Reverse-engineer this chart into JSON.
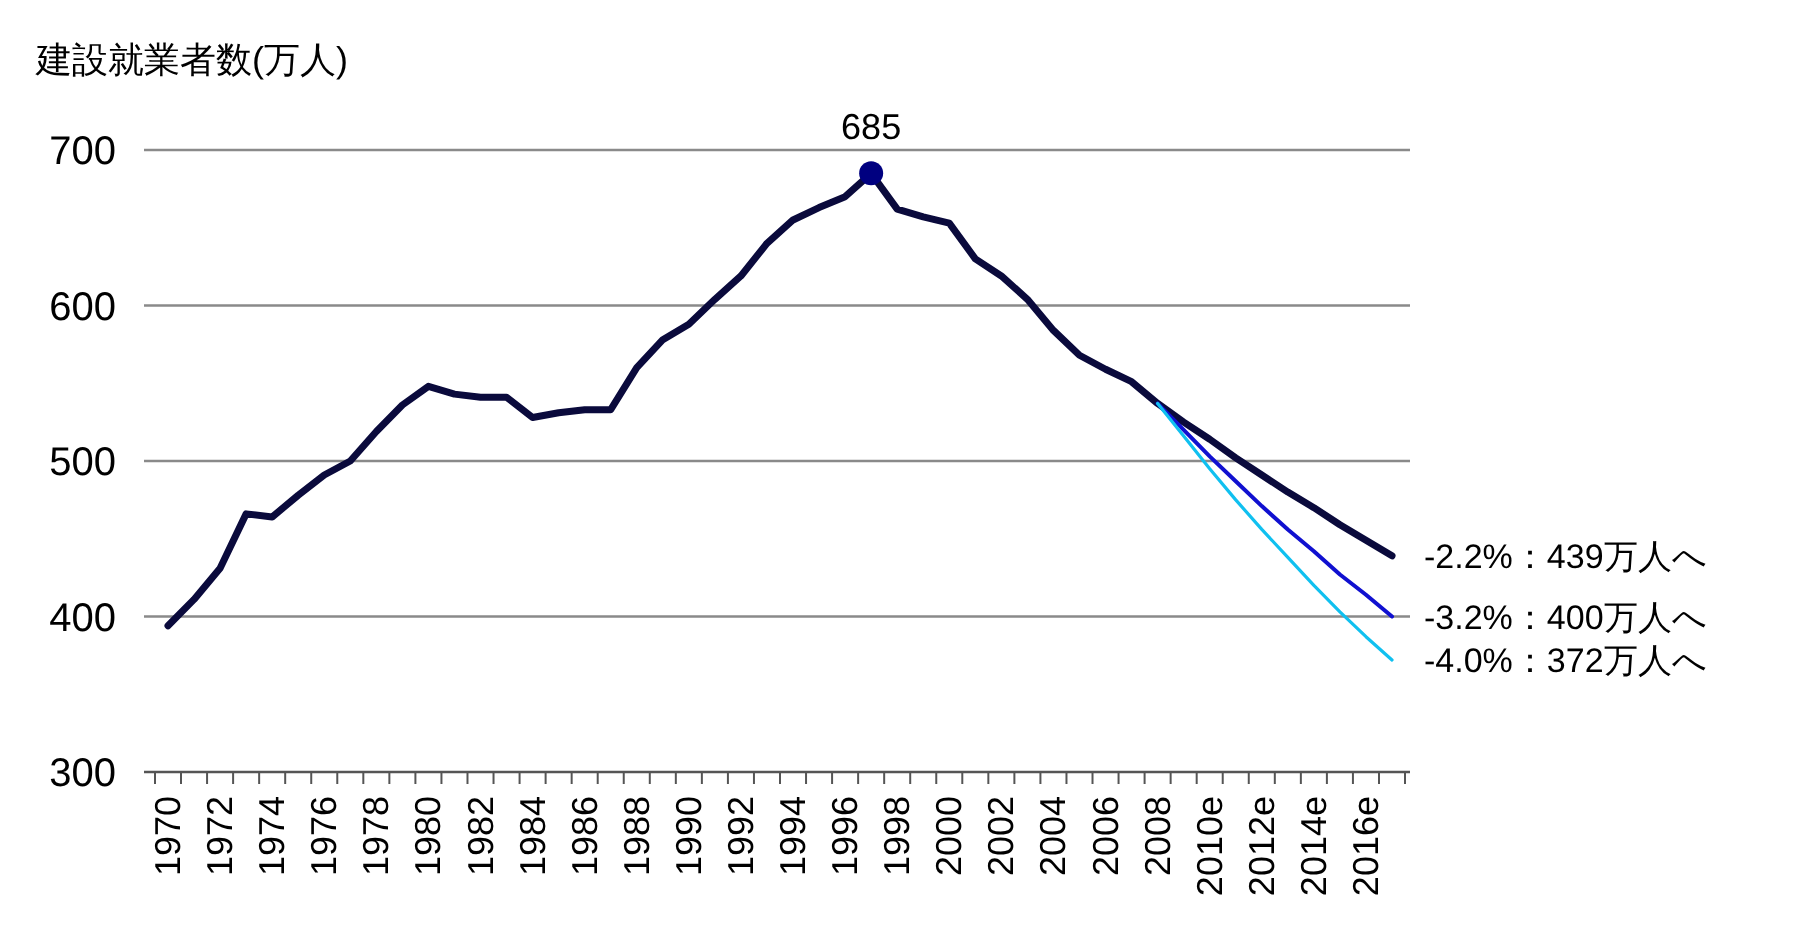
{
  "chart_data": {
    "type": "line",
    "ylabel": "建設就業者数(万人)",
    "categories": [
      "1970",
      null,
      "1972",
      null,
      "1974",
      null,
      "1976",
      null,
      "1978",
      null,
      "1980",
      null,
      "1982",
      null,
      "1984",
      null,
      "1986",
      null,
      "1988",
      null,
      "1990",
      null,
      "1992",
      null,
      "1994",
      null,
      "1996",
      null,
      "1998",
      null,
      "2000",
      null,
      "2002",
      null,
      "2004",
      null,
      "2006",
      null,
      "2008",
      null,
      "2010e",
      null,
      "2012e",
      null,
      "2014e",
      null,
      "2016e",
      null
    ],
    "series": [
      {
        "name": "-2.2%：439万人へ",
        "color": "#0a0a3c",
        "values": [
          394,
          411,
          431,
          466,
          464,
          478,
          491,
          500,
          519,
          536,
          548,
          543,
          541,
          541,
          528,
          531,
          533,
          533,
          560,
          578,
          588,
          604,
          619,
          640,
          655,
          663,
          670,
          685,
          662,
          657,
          653,
          630,
          619,
          604,
          584,
          568,
          559,
          551,
          537,
          525,
          514,
          502,
          491,
          480,
          470,
          459,
          449,
          439
        ]
      },
      {
        "name": "-3.2%：400万人へ",
        "color": "#1010d0",
        "values": [
          null,
          null,
          null,
          null,
          null,
          null,
          null,
          null,
          null,
          null,
          null,
          null,
          null,
          null,
          null,
          null,
          null,
          null,
          null,
          null,
          null,
          null,
          null,
          null,
          null,
          null,
          null,
          null,
          null,
          null,
          null,
          null,
          null,
          null,
          null,
          null,
          null,
          null,
          537,
          520,
          503,
          487,
          471,
          456,
          442,
          427,
          414,
          400
        ]
      },
      {
        "name": "-4.0%：372万人へ",
        "color": "#10c0f0",
        "values": [
          null,
          null,
          null,
          null,
          null,
          null,
          null,
          null,
          null,
          null,
          null,
          null,
          null,
          null,
          null,
          null,
          null,
          null,
          null,
          null,
          null,
          null,
          null,
          null,
          null,
          null,
          null,
          null,
          null,
          null,
          null,
          null,
          null,
          null,
          null,
          null,
          null,
          null,
          537,
          516,
          495,
          475,
          456,
          438,
          420,
          403,
          387,
          372
        ]
      },
      {
        "type": "scatter",
        "marker": "circle",
        "color": "#000080",
        "values": [
          null,
          null,
          null,
          null,
          null,
          null,
          null,
          null,
          null,
          null,
          null,
          null,
          null,
          null,
          null,
          null,
          null,
          null,
          null,
          null,
          null,
          null,
          null,
          null,
          null,
          null,
          null,
          685,
          null,
          null,
          null,
          null,
          null,
          null,
          null,
          null,
          null,
          null,
          null,
          null,
          null,
          null,
          null,
          null,
          null,
          null,
          null,
          null
        ],
        "value_labels": [
          null,
          null,
          null,
          null,
          null,
          null,
          null,
          null,
          null,
          null,
          null,
          null,
          null,
          null,
          null,
          null,
          null,
          null,
          null,
          null,
          null,
          null,
          null,
          null,
          null,
          null,
          null,
          "685",
          null,
          null,
          null,
          null,
          null,
          null,
          null,
          null,
          null,
          null,
          null,
          null,
          null,
          null,
          null,
          null,
          null,
          null,
          null,
          null
        ]
      }
    ],
    "ylim": [
      300,
      700
    ],
    "yticks": [
      300,
      400,
      500,
      600,
      700
    ],
    "grid": "y"
  }
}
